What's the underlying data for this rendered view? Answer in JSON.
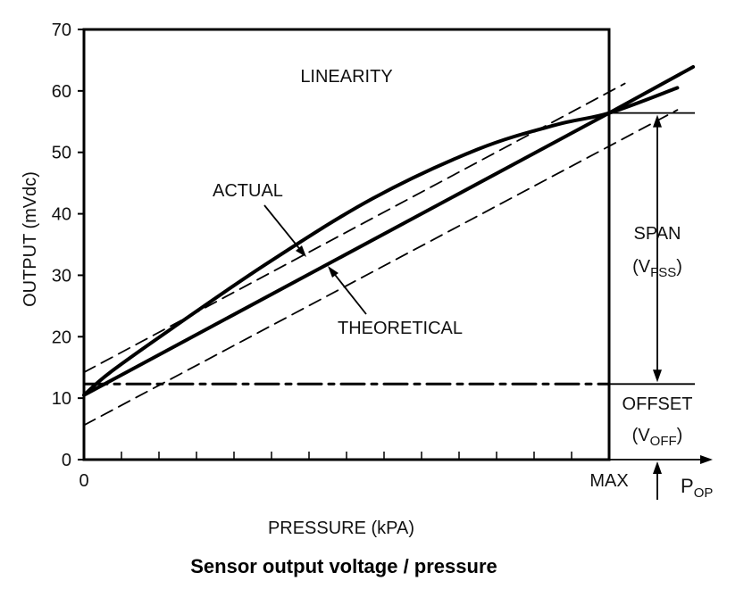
{
  "chart_data": {
    "type": "line",
    "title": "LINEARITY",
    "xlabel": "PRESSURE (kPA)",
    "ylabel": "OUTPUT (mVdc)",
    "xlim": [
      0,
      1
    ],
    "ylim": [
      0,
      70
    ],
    "x_tick_labels": [
      "0",
      "MAX"
    ],
    "y_ticks": [
      0,
      10,
      20,
      30,
      40,
      50,
      60,
      70
    ],
    "x_minor_ticks": 14,
    "grid": false,
    "series": [
      {
        "name": "THEORETICAL",
        "style": "solid",
        "x": [
          0,
          1,
          1.16
        ],
        "y": [
          10.5,
          56.4,
          63.9
        ]
      },
      {
        "name": "ACTUAL",
        "style": "solid",
        "x": [
          0,
          0.05,
          0.17,
          0.35,
          0.55,
          0.75,
          0.9,
          1,
          1.13
        ],
        "y": [
          10.5,
          14.2,
          21.5,
          32,
          42.5,
          50.5,
          54.5,
          56.4,
          60.5
        ]
      },
      {
        "style": "dashed",
        "x": [
          0,
          1.03
        ],
        "y": [
          14.2,
          61.2
        ]
      },
      {
        "style": "dashed",
        "x": [
          0,
          1.13
        ],
        "y": [
          5.6,
          56.9
        ]
      },
      {
        "style": "dash-dot",
        "x": [
          0,
          1
        ],
        "y": [
          12.3,
          12.3
        ]
      }
    ],
    "annotations": {
      "actual": "ACTUAL",
      "theoretical": "THEORETICAL",
      "span": "SPAN",
      "span_sub_main": "(V",
      "span_sub": "FSS",
      "span_close": ")",
      "offset": "OFFSET",
      "offset_sub_main": "(V",
      "offset_sub": "OFF",
      "offset_close": ")",
      "pop_main": "P",
      "pop_sub": "OP"
    },
    "levels": {
      "offset": 12.3,
      "full_scale": 56.4
    }
  },
  "caption": "Sensor output voltage / pressure"
}
